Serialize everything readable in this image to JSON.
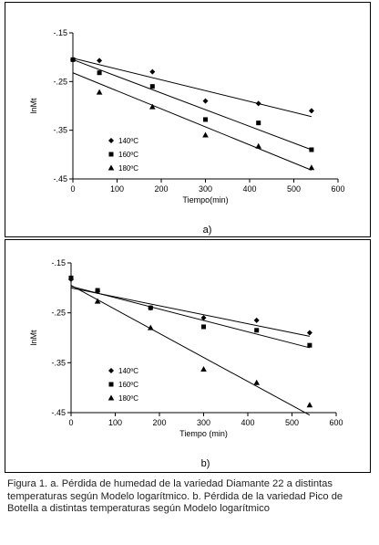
{
  "chart_data": [
    {
      "type": "scatter",
      "panel_label": "a)",
      "title": "",
      "xlabel": "Tiempo(min)",
      "ylabel": "lnMt",
      "xlim": [
        0,
        600
      ],
      "ylim": [
        -0.45,
        -0.15
      ],
      "xticks": [
        0,
        100,
        200,
        300,
        400,
        500,
        600
      ],
      "yticks": [
        -0.15,
        -0.25,
        -0.35,
        -0.45
      ],
      "grid": false,
      "legend_position": "bottom-left",
      "series": [
        {
          "name": "140ºC",
          "marker": "diamond",
          "x": [
            0,
            60,
            180,
            300,
            420,
            540
          ],
          "y": [
            -0.205,
            -0.207,
            -0.23,
            -0.29,
            -0.295,
            -0.31
          ],
          "fit": [
            -0.202,
            -0.322
          ]
        },
        {
          "name": "160ºC",
          "marker": "square",
          "x": [
            0,
            60,
            180,
            300,
            420,
            540
          ],
          "y": [
            -0.205,
            -0.232,
            -0.26,
            -0.328,
            -0.335,
            -0.39
          ],
          "fit": [
            -0.205,
            -0.39
          ]
        },
        {
          "name": "180ºC",
          "marker": "triangle",
          "x": [
            60,
            180,
            300,
            420,
            540
          ],
          "y": [
            -0.272,
            -0.302,
            -0.36,
            -0.383,
            -0.427
          ],
          "fit": [
            -0.232,
            -0.432
          ]
        }
      ]
    },
    {
      "type": "scatter",
      "panel_label": "b)",
      "title": "",
      "xlabel": "Tiempo (min)",
      "ylabel": "lnMt",
      "xlim": [
        0,
        600
      ],
      "ylim": [
        -0.45,
        -0.15
      ],
      "xticks": [
        0,
        100,
        200,
        300,
        400,
        500,
        600
      ],
      "yticks": [
        -0.15,
        -0.25,
        -0.35,
        -0.45
      ],
      "grid": false,
      "legend_position": "bottom-left",
      "series": [
        {
          "name": "140ºC",
          "marker": "diamond",
          "x": [
            0,
            60,
            180,
            300,
            420,
            540
          ],
          "y": [
            -0.183,
            -0.207,
            -0.24,
            -0.26,
            -0.265,
            -0.29
          ],
          "fit": [
            -0.2,
            -0.297
          ]
        },
        {
          "name": "160ºC",
          "marker": "square",
          "x": [
            0,
            60,
            180,
            300,
            420,
            540
          ],
          "y": [
            -0.18,
            -0.205,
            -0.24,
            -0.278,
            -0.285,
            -0.315
          ],
          "fit": [
            -0.197,
            -0.32
          ]
        },
        {
          "name": "180ºC",
          "marker": "triangle",
          "x": [
            60,
            180,
            300,
            420,
            540
          ],
          "y": [
            -0.227,
            -0.28,
            -0.363,
            -0.39,
            -0.435
          ],
          "fit": [
            -0.195,
            -0.455
          ]
        }
      ]
    }
  ],
  "caption": "Figura 1. a. Pérdida de humedad de la variedad Diamante 22 a distintas temperaturas según Modelo logarítmico. b. Pérdida de la variedad Pico de Botella a distintas temperaturas según Modelo logarítmico"
}
